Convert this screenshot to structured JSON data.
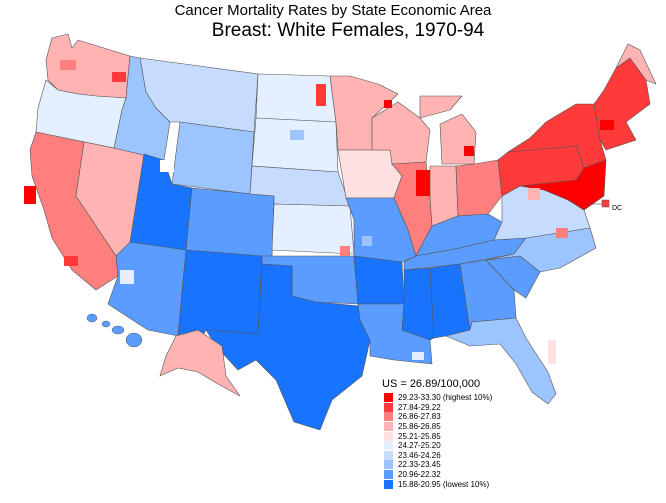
{
  "title": "Cancer Mortality Rates by State Economic Area",
  "subtitle": "Breast:  White Females, 1970-94",
  "dc_label": "DC",
  "legend": {
    "heading": "US = 26.89/100,000",
    "items": [
      {
        "label": "29.23-33.30 (highest 10%)",
        "color": "#ff0000"
      },
      {
        "label": "27.84-29.22",
        "color": "#ff3a3a"
      },
      {
        "label": "26.86-27.83",
        "color": "#ff7f7f"
      },
      {
        "label": "25.86-26.85",
        "color": "#ffb3b3"
      },
      {
        "label": "25.21-25.85",
        "color": "#ffe0e0"
      },
      {
        "label": "24.27-25.20",
        "color": "#e4f0ff"
      },
      {
        "label": "23.46-24.26",
        "color": "#c6dcff"
      },
      {
        "label": "22.33-23.45",
        "color": "#9cc4ff"
      },
      {
        "label": "20.96-22.32",
        "color": "#5a9cff"
      },
      {
        "label": "15.88-20.95 (lowest 10%)",
        "color": "#1874ff"
      }
    ]
  }
}
